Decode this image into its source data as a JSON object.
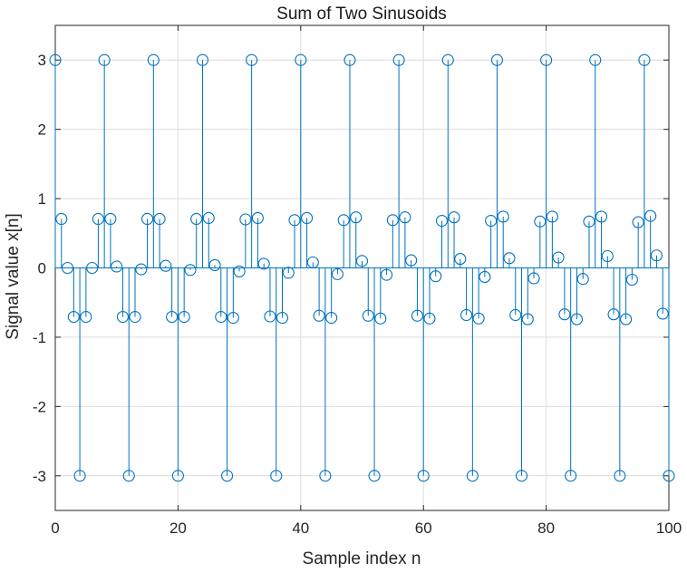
{
  "chart_data": {
    "type": "stem",
    "title": "Sum of Two Sinusoids",
    "xlabel": "Sample index n",
    "ylabel": "Signal value x[n]",
    "xlim": [
      0,
      100
    ],
    "ylim": [
      -3.5,
      3.5
    ],
    "xticks": [
      "0",
      "20",
      "40",
      "60",
      "80",
      "100"
    ],
    "yticks": [
      "-3",
      "-2",
      "-1",
      "0",
      "1",
      "2",
      "3"
    ],
    "grid": true,
    "series": [
      {
        "color": "#0072BD",
        "x": [
          0,
          1,
          2,
          3,
          4,
          5,
          6,
          7,
          8,
          9,
          10,
          11,
          12,
          13,
          14,
          15,
          16,
          17,
          18,
          19,
          20,
          21,
          22,
          23,
          24,
          25,
          26,
          27,
          28,
          29,
          30,
          31,
          32,
          33,
          34,
          35,
          36,
          37,
          38,
          39,
          40,
          41,
          42,
          43,
          44,
          45,
          46,
          47,
          48,
          49,
          50,
          51,
          52,
          53,
          54,
          55,
          56,
          57,
          58,
          59,
          60,
          61,
          62,
          63,
          64,
          65,
          66,
          67,
          68,
          69,
          70,
          71,
          72,
          73,
          74,
          75,
          76,
          77,
          78,
          79,
          80,
          81,
          82,
          83,
          84,
          85,
          86,
          87,
          88,
          89,
          90,
          91,
          92,
          93,
          94,
          95,
          96,
          97,
          98,
          99,
          100
        ],
        "values": [
          3.0,
          0.707,
          0.0,
          -0.707,
          -3.0,
          -0.707,
          0.0,
          0.707,
          3.0,
          0.707,
          0.02,
          -0.707,
          -3.0,
          -0.707,
          -0.02,
          0.707,
          3.0,
          0.707,
          0.03,
          -0.707,
          -3.0,
          -0.707,
          -0.03,
          0.707,
          3.0,
          0.72,
          0.04,
          -0.707,
          -3.0,
          -0.72,
          -0.05,
          0.7,
          3.0,
          0.72,
          0.06,
          -0.7,
          -3.0,
          -0.72,
          -0.07,
          0.69,
          3.0,
          0.72,
          0.08,
          -0.69,
          -3.0,
          -0.72,
          -0.09,
          0.69,
          3.0,
          0.73,
          0.1,
          -0.69,
          -3.0,
          -0.73,
          -0.1,
          0.69,
          3.0,
          0.73,
          0.11,
          -0.69,
          -3.0,
          -0.73,
          -0.12,
          0.68,
          3.0,
          0.73,
          0.13,
          -0.68,
          -3.0,
          -0.73,
          -0.13,
          0.68,
          3.0,
          0.74,
          0.14,
          -0.68,
          -3.0,
          -0.74,
          -0.15,
          0.67,
          3.0,
          0.74,
          0.15,
          -0.67,
          -3.0,
          -0.74,
          -0.16,
          0.67,
          3.0,
          0.74,
          0.17,
          -0.67,
          -3.0,
          -0.74,
          -0.17,
          0.66,
          3.0,
          0.75,
          0.18,
          -0.66,
          -3.0
        ]
      }
    ]
  }
}
